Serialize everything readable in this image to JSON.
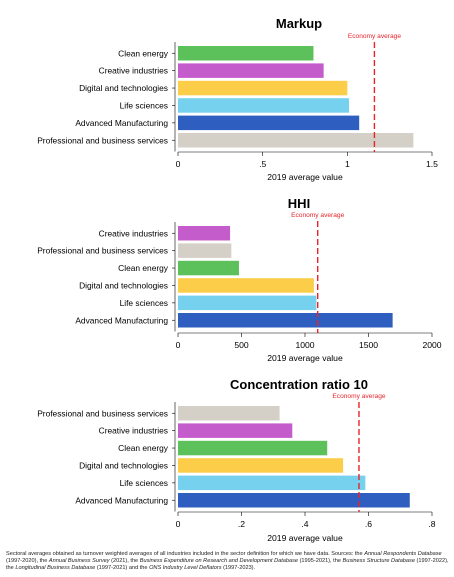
{
  "figure": {
    "footnote_parts": [
      {
        "t": "Sectoral averages obtained as turnover weighted averages of all industries included in the sector definition for which we have data. Sources: the ",
        "i": false
      },
      {
        "t": "Annual Respondents Database",
        "i": true
      },
      {
        "t": " (1997-2020), the ",
        "i": false
      },
      {
        "t": "Annual Business Survey",
        "i": true
      },
      {
        "t": " (2021), the ",
        "i": false
      },
      {
        "t": "Business Expenditure on Research and Development Database",
        "i": true
      },
      {
        "t": " (1995-2021), the ",
        "i": false
      },
      {
        "t": "Business Structure Database",
        "i": true
      },
      {
        "t": " (1997-2022), the ",
        "i": false
      },
      {
        "t": "Longitudinal Business Database",
        "i": true
      },
      {
        "t": " (1997-2021) and the ",
        "i": false
      },
      {
        "t": "ONS Industry Level Deflators",
        "i": true
      },
      {
        "t": " (1997-2023).",
        "i": false
      }
    ]
  },
  "colors": {
    "Clean energy": "#5cc15a",
    "Creative industries": "#c45ccb",
    "Digital and technologies": "#fccd49",
    "Life sciences": "#76d1ee",
    "Advanced Manufacturing": "#2e5fc0",
    "Professional and business services": "#d4d0c8",
    "reference_line": "#e8242a"
  },
  "chart_data": [
    {
      "type": "bar",
      "orientation": "horizontal",
      "title": "Markup",
      "xlabel": "2019 average value",
      "categories": [
        "Clean energy",
        "Creative industries",
        "Digital and technologies",
        "Life sciences",
        "Advanced Manufacturing",
        "Professional and business services"
      ],
      "values": [
        0.8,
        0.86,
        1.0,
        1.01,
        1.07,
        1.39
      ],
      "xlim": [
        0,
        1.5
      ],
      "xticks": [
        0,
        0.5,
        1,
        1.5
      ],
      "xtick_labels": [
        "0",
        ".5",
        "1",
        "1.5"
      ],
      "reference_line": {
        "label": "Economy average",
        "value": 1.16
      },
      "grid": false
    },
    {
      "type": "bar",
      "orientation": "horizontal",
      "title": "HHI",
      "xlabel": "2019 average value",
      "categories": [
        "Creative industries",
        "Professional and business services",
        "Clean energy",
        "Digital and technologies",
        "Life sciences",
        "Advanced Manufacturing"
      ],
      "values": [
        410,
        420,
        480,
        1070,
        1090,
        1690
      ],
      "xlim": [
        0,
        2000
      ],
      "xticks": [
        0,
        500,
        1000,
        1500,
        2000
      ],
      "xtick_labels": [
        "0",
        "500",
        "1000",
        "1500",
        "2000"
      ],
      "reference_line": {
        "label": "Economy average",
        "value": 1100
      },
      "grid": false
    },
    {
      "type": "bar",
      "orientation": "horizontal",
      "title": "Concentration ratio 10",
      "xlabel": "2019 average value",
      "categories": [
        "Professional and business services",
        "Creative industries",
        "Clean energy",
        "Digital and technologies",
        "Life sciences",
        "Advanced Manufacturing"
      ],
      "values": [
        0.32,
        0.36,
        0.47,
        0.52,
        0.59,
        0.73
      ],
      "xlim": [
        0,
        0.8
      ],
      "xticks": [
        0,
        0.2,
        0.4,
        0.6,
        0.8
      ],
      "xtick_labels": [
        "0",
        ".2",
        ".4",
        ".6",
        ".8"
      ],
      "reference_line": {
        "label": "Economy average",
        "value": 0.57
      },
      "grid": false
    }
  ]
}
